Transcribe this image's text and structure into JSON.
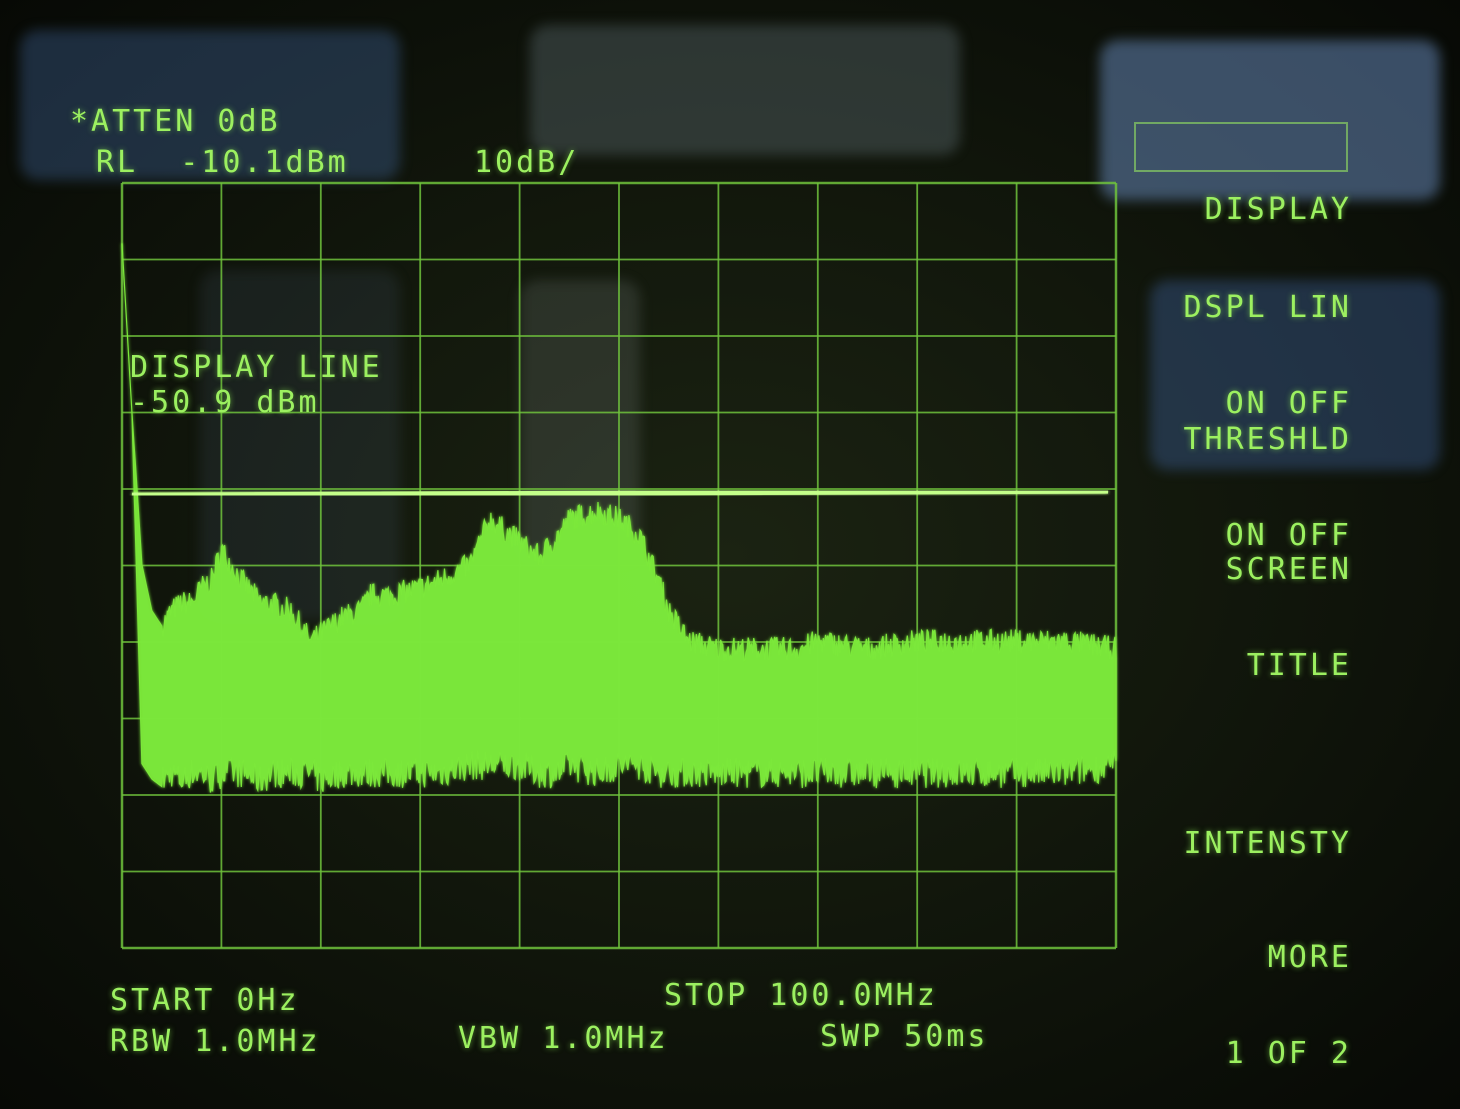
{
  "header": {
    "atten": "*ATTEN 0dB",
    "ref_level": "RL  -10.1dBm",
    "scale": "10dB/"
  },
  "marker_readout": {
    "label": "DISPLAY LINE",
    "value": "-50.9 dBm"
  },
  "softkeys": [
    {
      "line1": "DISPLAY",
      "line2": ""
    },
    {
      "line1": "DSPL LIN",
      "line2": "ON OFF"
    },
    {
      "line1": "THRESHLD",
      "line2": "ON OFF"
    },
    {
      "line1": "SCREEN",
      "line2": "TITLE"
    },
    {
      "line1": "INTENSTY",
      "line2": ""
    },
    {
      "line1": "MORE",
      "line2": "1 OF 2"
    }
  ],
  "footer": {
    "start": "START 0Hz",
    "stop": "STOP 100.0MHz",
    "rbw": "RBW 1.0MHz",
    "vbw": "VBW 1.0MHz",
    "swp": "SWP 50ms"
  },
  "colors": {
    "phosphor": "#9cf060",
    "grid": "#6fc23c",
    "trace_fill": "#7be83a"
  },
  "chart_data": {
    "type": "area",
    "x_unit": "MHz",
    "y_unit": "dBm",
    "xlim": [
      0,
      100
    ],
    "ylim": [
      -110.1,
      -10.1
    ],
    "grid": true,
    "display_line_dbm": -50.9,
    "series": [
      {
        "x": [
          0,
          1,
          2,
          3,
          4,
          5,
          6,
          7,
          8,
          9,
          10,
          12,
          14,
          15,
          17,
          19,
          20,
          22,
          24,
          25,
          27,
          30,
          32,
          35,
          37,
          40,
          42,
          44,
          45,
          48,
          50,
          52,
          54,
          55,
          57,
          60,
          63,
          65,
          68,
          70,
          75,
          80,
          85,
          90,
          95,
          100
        ],
        "peak": [
          -18,
          -40,
          -60,
          -66,
          -68,
          -66,
          -65,
          -65,
          -63,
          -62,
          -58,
          -62,
          -65,
          -65,
          -66,
          -70,
          -69,
          -67,
          -66,
          -64,
          -64,
          -63,
          -62,
          -60,
          -54,
          -57,
          -59,
          -56,
          -54,
          -53,
          -54,
          -56,
          -62,
          -66,
          -70,
          -71,
          -71,
          -71,
          -71,
          -70,
          -71,
          -70,
          -70,
          -70,
          -70,
          -71
        ],
        "floor": [
          -18,
          -40,
          -86,
          -88,
          -89,
          -88,
          -89,
          -88,
          -88,
          -89,
          -88,
          -88,
          -89,
          -88,
          -88,
          -88,
          -89,
          -88,
          -88,
          -88,
          -88,
          -88,
          -88,
          -87,
          -87,
          -87,
          -88,
          -88,
          -87,
          -88,
          -87,
          -87,
          -88,
          -88,
          -88,
          -88,
          -88,
          -88,
          -88,
          -88,
          -88,
          -88,
          -88,
          -88,
          -88,
          -87
        ]
      }
    ]
  }
}
